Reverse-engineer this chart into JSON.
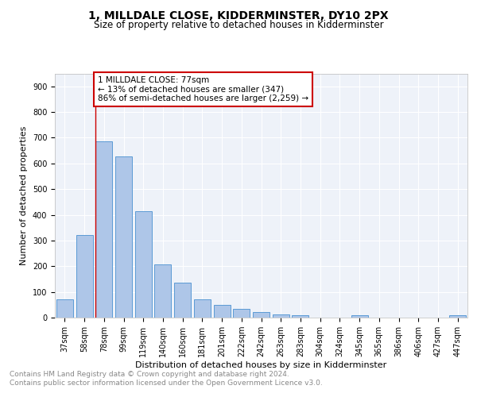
{
  "title": "1, MILLDALE CLOSE, KIDDERMINSTER, DY10 2PX",
  "subtitle": "Size of property relative to detached houses in Kidderminster",
  "xlabel": "Distribution of detached houses by size in Kidderminster",
  "ylabel": "Number of detached properties",
  "categories": [
    "37sqm",
    "58sqm",
    "78sqm",
    "99sqm",
    "119sqm",
    "140sqm",
    "160sqm",
    "181sqm",
    "201sqm",
    "222sqm",
    "242sqm",
    "263sqm",
    "283sqm",
    "304sqm",
    "324sqm",
    "345sqm",
    "365sqm",
    "386sqm",
    "406sqm",
    "427sqm",
    "447sqm"
  ],
  "values": [
    70,
    320,
    685,
    628,
    413,
    208,
    136,
    70,
    48,
    35,
    22,
    12,
    8,
    0,
    0,
    8,
    0,
    0,
    0,
    0,
    8
  ],
  "bar_color": "#aec6e8",
  "bar_edge_color": "#5b9bd5",
  "property_line_index": 2,
  "property_line_color": "#cc0000",
  "annotation_text": "1 MILLDALE CLOSE: 77sqm\n← 13% of detached houses are smaller (347)\n86% of semi-detached houses are larger (2,259) →",
  "annotation_box_edgecolor": "#cc0000",
  "annotation_box_facecolor": "#ffffff",
  "ylim": [
    0,
    950
  ],
  "yticks": [
    0,
    100,
    200,
    300,
    400,
    500,
    600,
    700,
    800,
    900
  ],
  "background_color": "#eef2f9",
  "grid_color": "#ffffff",
  "footer_text": "Contains HM Land Registry data © Crown copyright and database right 2024.\nContains public sector information licensed under the Open Government Licence v3.0.",
  "title_fontsize": 10,
  "subtitle_fontsize": 8.5,
  "axis_label_fontsize": 8,
  "tick_fontsize": 7,
  "annotation_fontsize": 7.5,
  "footer_fontsize": 6.5
}
